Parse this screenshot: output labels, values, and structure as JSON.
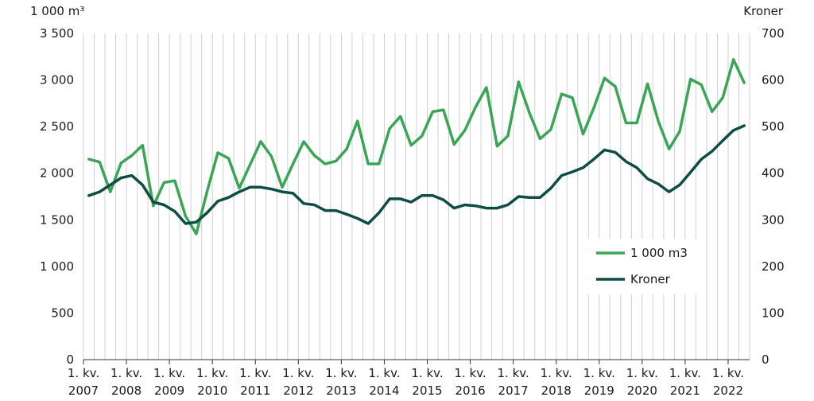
{
  "chart_data": {
    "type": "line",
    "left_axis_unit": "1 000 m³",
    "right_axis_unit": "Kroner",
    "x_tick_top": "1. kv.",
    "x_tick_years": [
      "2007",
      "2008",
      "2009",
      "2010",
      "2011",
      "2012",
      "2013",
      "2014",
      "2015",
      "2016",
      "2017",
      "2018",
      "2019",
      "2020",
      "2021",
      "2022"
    ],
    "y_left_ticks": [
      "0",
      "500",
      "1 000",
      "1 500",
      "2 000",
      "2 500",
      "3 000",
      "3 500"
    ],
    "y_right_ticks": [
      "0",
      "100",
      "200",
      "300",
      "400",
      "500",
      "600",
      "700"
    ],
    "ylim_left": [
      0,
      3500
    ],
    "ylim_right": [
      0,
      700
    ],
    "grid": "vertical",
    "legend_position": "lower-right",
    "series": [
      {
        "name": "1 000 m3",
        "axis": "left",
        "color": "#3aa655",
        "values": [
          2150,
          2120,
          1800,
          2110,
          2190,
          2300,
          1650,
          1900,
          1920,
          1540,
          1350,
          1800,
          2220,
          2160,
          1840,
          2090,
          2340,
          2180,
          1850,
          2100,
          2340,
          2190,
          2100,
          2130,
          2260,
          2560,
          2100,
          2100,
          2480,
          2610,
          2300,
          2400,
          2660,
          2680,
          2310,
          2460,
          2710,
          2920,
          2290,
          2400,
          2980,
          2650,
          2370,
          2470,
          2850,
          2810,
          2420,
          2700,
          3020,
          2930,
          2540,
          2540,
          2960,
          2560,
          2260,
          2450,
          3010,
          2950,
          2660,
          2810,
          3220,
          2970
        ]
      },
      {
        "name": "Kroner",
        "axis": "right",
        "color": "#0d4d43",
        "values": [
          352,
          360,
          375,
          390,
          395,
          375,
          338,
          332,
          318,
          292,
          295,
          315,
          340,
          348,
          360,
          370,
          370,
          366,
          360,
          357,
          335,
          332,
          320,
          320,
          312,
          303,
          292,
          315,
          345,
          345,
          338,
          352,
          352,
          343,
          325,
          332,
          330,
          325,
          325,
          332,
          350,
          348,
          348,
          368,
          395,
          403,
          412,
          430,
          450,
          445,
          425,
          412,
          388,
          377,
          360,
          375,
          402,
          430,
          447,
          470,
          492,
          502
        ]
      }
    ]
  }
}
